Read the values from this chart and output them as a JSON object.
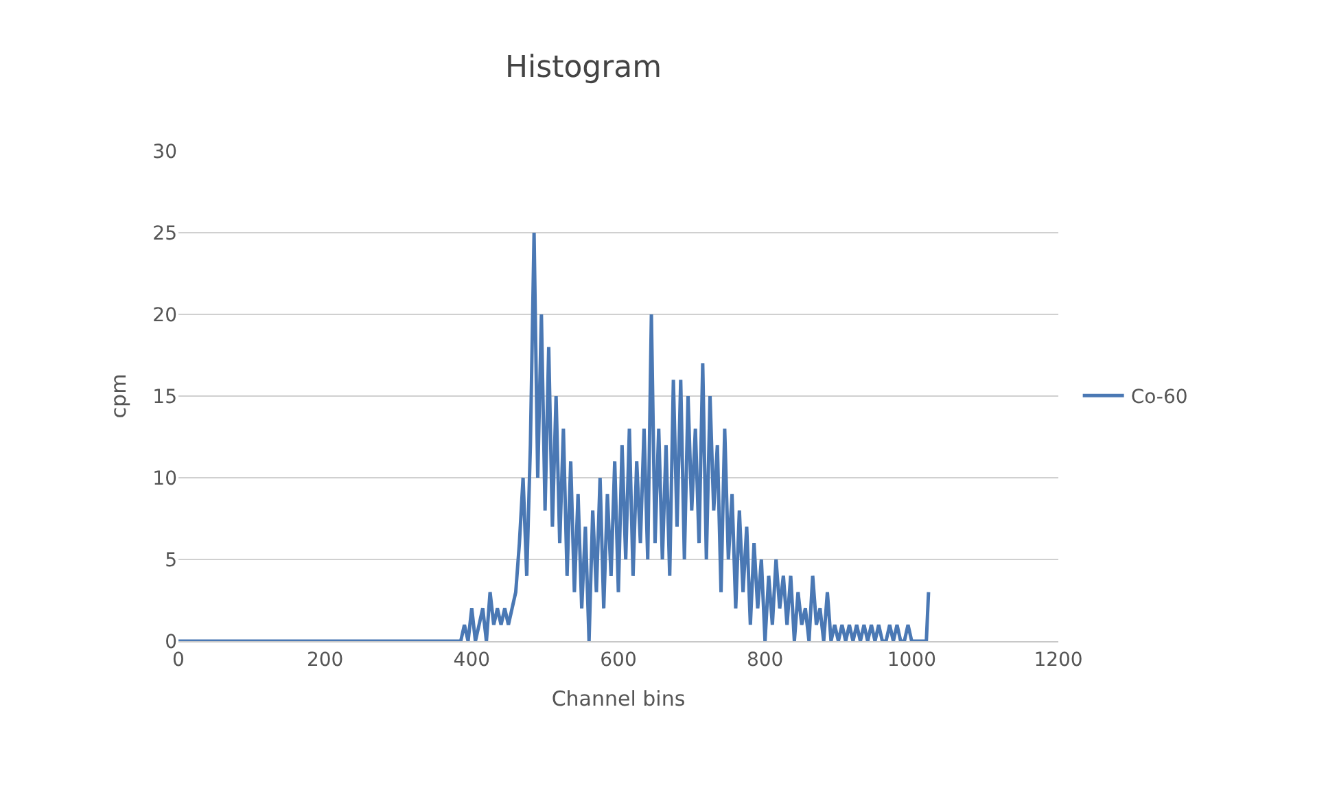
{
  "chart_data": {
    "type": "line",
    "title": "Histogram",
    "xlabel": "Channel bins",
    "ylabel": "cpm",
    "xlim": [
      0,
      1200
    ],
    "xticks": [
      0,
      200,
      400,
      600,
      800,
      1000,
      1200
    ],
    "ylim": [
      0,
      30
    ],
    "yticks": [
      0,
      5,
      10,
      15,
      20,
      25,
      30
    ],
    "grid": "y",
    "legend": "right",
    "marker": "none",
    "line_style": "solid",
    "series": [
      {
        "name": "Co-60",
        "color": "#4a78b4",
        "x": [
          0,
          380,
          385,
          390,
          395,
          400,
          405,
          410,
          415,
          420,
          425,
          430,
          435,
          440,
          445,
          450,
          455,
          460,
          465,
          470,
          475,
          480,
          485,
          490,
          495,
          500,
          505,
          510,
          515,
          520,
          525,
          530,
          535,
          540,
          545,
          550,
          555,
          560,
          565,
          570,
          575,
          580,
          585,
          590,
          595,
          600,
          605,
          610,
          615,
          620,
          625,
          630,
          635,
          640,
          645,
          650,
          655,
          660,
          665,
          670,
          675,
          680,
          685,
          690,
          695,
          700,
          705,
          710,
          715,
          720,
          725,
          730,
          735,
          740,
          745,
          750,
          755,
          760,
          765,
          770,
          775,
          780,
          785,
          790,
          795,
          800,
          805,
          810,
          815,
          820,
          825,
          830,
          835,
          840,
          845,
          850,
          855,
          860,
          865,
          870,
          875,
          880,
          885,
          890,
          895,
          900,
          905,
          910,
          915,
          920,
          925,
          930,
          935,
          940,
          945,
          950,
          955,
          960,
          965,
          970,
          975,
          980,
          985,
          990,
          995,
          1000,
          1005,
          1010,
          1015,
          1020,
          1023
        ],
        "values": [
          0,
          0,
          0,
          1,
          0,
          2,
          0,
          1,
          2,
          0,
          3,
          1,
          2,
          1,
          2,
          1,
          2,
          3,
          6,
          10,
          4,
          12,
          25,
          10,
          20,
          8,
          18,
          7,
          15,
          6,
          13,
          4,
          11,
          3,
          9,
          2,
          7,
          0,
          8,
          3,
          10,
          2,
          9,
          4,
          11,
          3,
          12,
          5,
          13,
          4,
          11,
          6,
          13,
          5,
          20,
          6,
          13,
          5,
          12,
          4,
          16,
          7,
          16,
          5,
          15,
          8,
          13,
          6,
          17,
          5,
          15,
          8,
          12,
          3,
          13,
          5,
          9,
          2,
          8,
          3,
          7,
          1,
          6,
          2,
          5,
          0,
          4,
          1,
          5,
          2,
          4,
          1,
          4,
          0,
          3,
          1,
          2,
          0,
          4,
          1,
          2,
          0,
          3,
          0,
          1,
          0,
          1,
          0,
          1,
          0,
          1,
          0,
          1,
          0,
          1,
          0,
          1,
          0,
          0,
          1,
          0,
          1,
          0,
          0,
          1,
          0,
          0,
          0,
          0,
          0,
          3
        ]
      }
    ]
  }
}
